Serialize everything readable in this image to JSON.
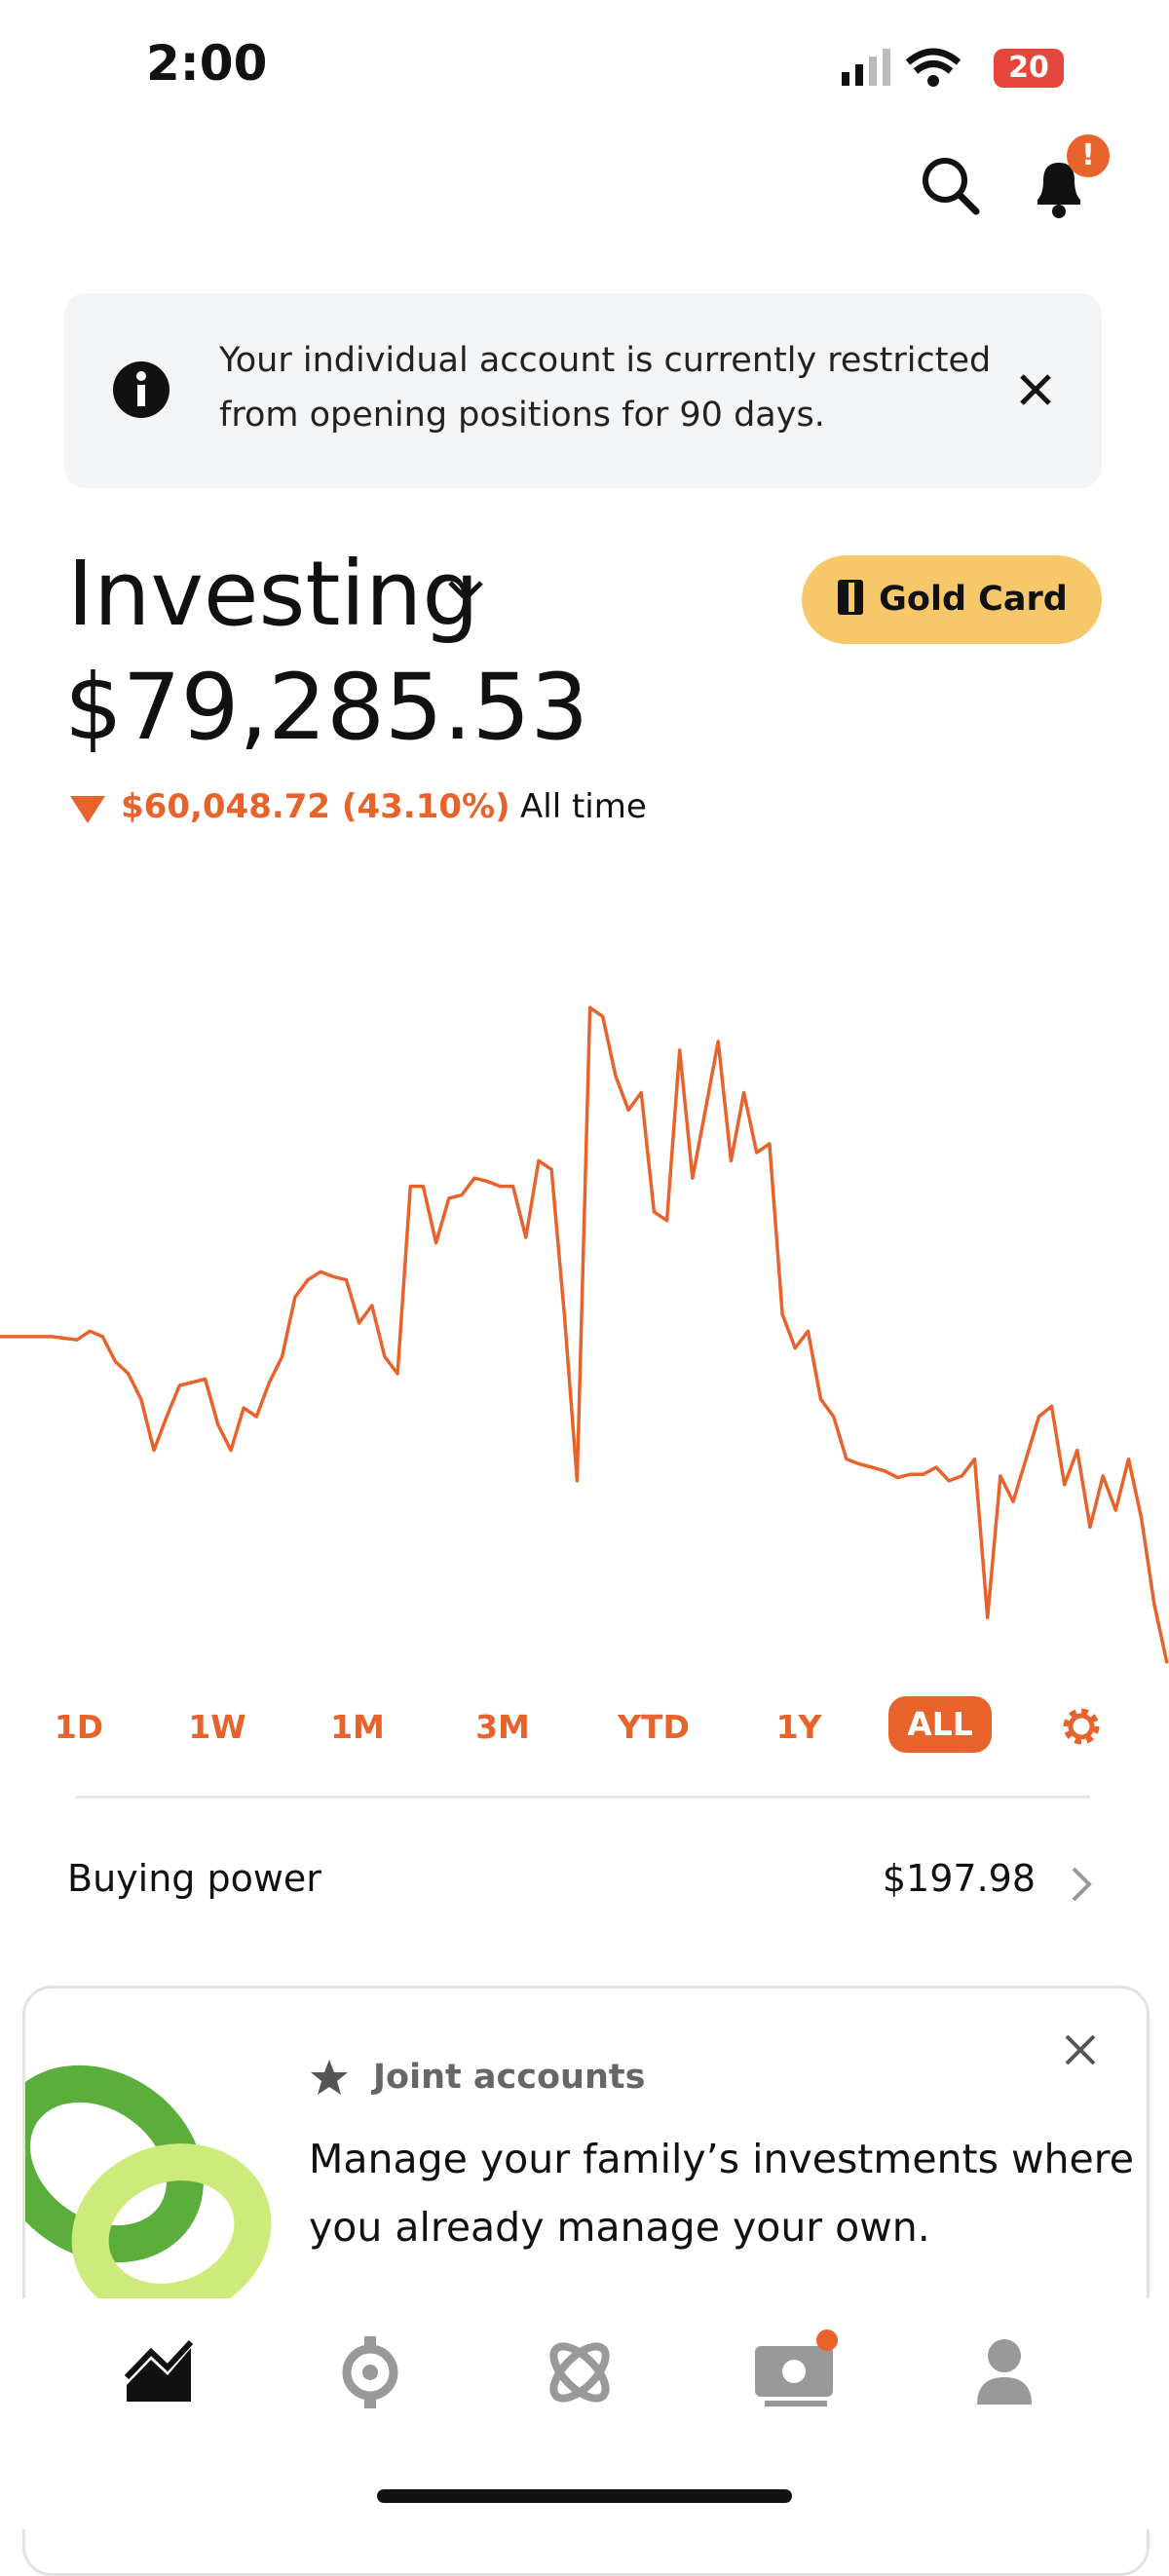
{
  "status_bar": {
    "time": "2:00",
    "battery": "20"
  },
  "notification_badge": "!",
  "banner": {
    "lines": [
      "Your individual account is currently restricted",
      "from opening positions for 90 days."
    ]
  },
  "account": {
    "title": "Investing",
    "button": "Gold Card",
    "balance": "$79,285.53",
    "change": "$60,048.72 (43.10%)",
    "period": "All time"
  },
  "chart_data": {
    "type": "line",
    "color": "#e8632b",
    "ylim": [
      77000,
      213000
    ],
    "values": [
      139300,
      139300,
      139300,
      139300,
      139300,
      139000,
      138700,
      140300,
      139300,
      134700,
      132500,
      127800,
      118400,
      124600,
      130300,
      130900,
      131500,
      123100,
      118400,
      126200,
      124600,
      130900,
      135600,
      146500,
      149700,
      151200,
      150300,
      149700,
      141800,
      145000,
      135600,
      132500,
      166900,
      166900,
      156500,
      164700,
      165300,
      168400,
      167800,
      166900,
      166900,
      157500,
      171600,
      170000,
      143400,
      112800,
      199700,
      198100,
      187200,
      180900,
      184100,
      162200,
      160600,
      191900,
      168400,
      180900,
      193500,
      171600,
      184100,
      173100,
      174700,
      143400,
      137200,
      140300,
      127800,
      124600,
      116800,
      115900,
      115300,
      114600,
      113400,
      114000,
      114000,
      115300,
      112800,
      113700,
      116800,
      87700,
      113700,
      109000,
      116800,
      124600,
      126500,
      112100,
      118400,
      104300,
      113700,
      107400,
      116800,
      105900,
      90200,
      79285.53
    ]
  },
  "ranges": [
    "1D",
    "1W",
    "1M",
    "3M",
    "YTD",
    "1Y",
    "ALL"
  ],
  "selected_range": 6,
  "buying_power": {
    "label": "Buying power",
    "value": "$197.98"
  },
  "promo": {
    "tag": "Joint accounts",
    "lines": [
      "Manage your family’s investments where",
      "you already manage your own."
    ]
  }
}
